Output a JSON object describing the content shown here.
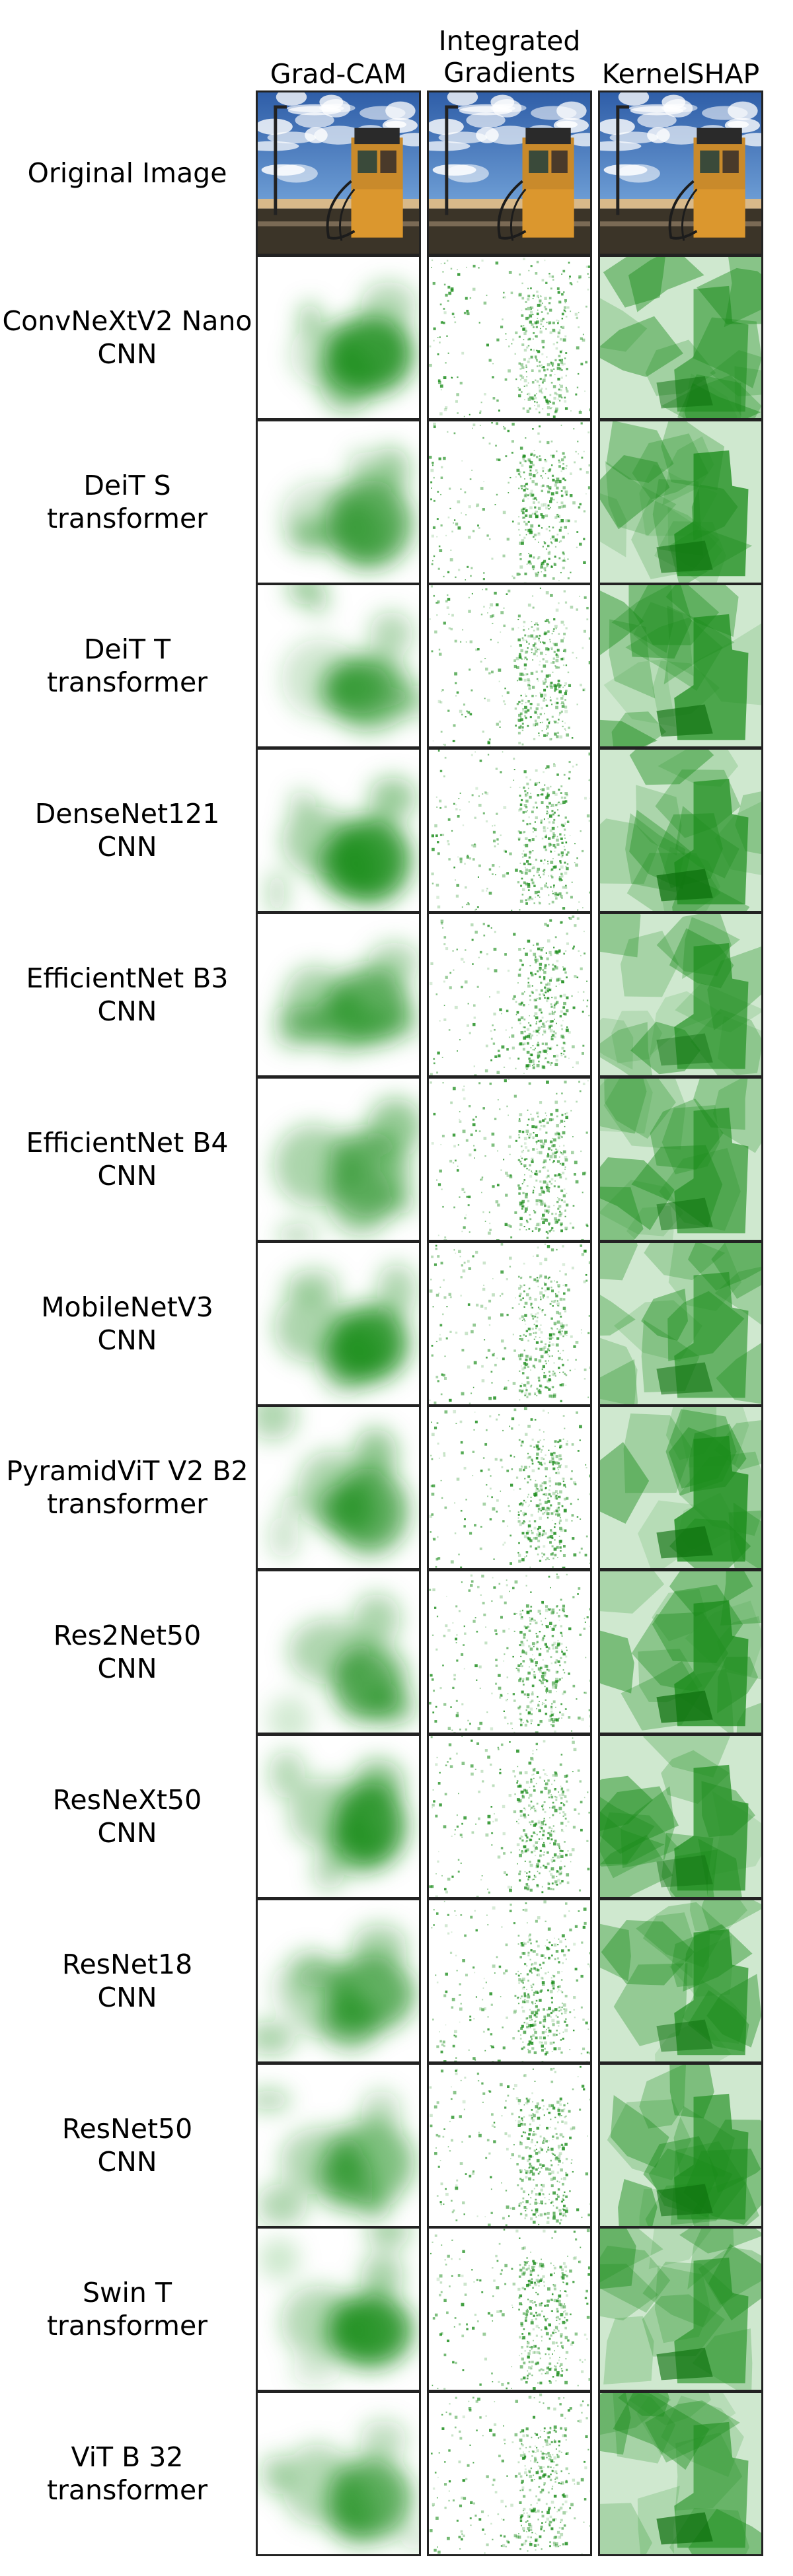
{
  "columns": [
    "Grad-CAM",
    "Integrated\nGradients",
    "KernelSHAP"
  ],
  "original_label": "Original Image",
  "rows": [
    {
      "model": "ConvNeXtV2 Nano",
      "family": "CNN"
    },
    {
      "model": "DeiT S",
      "family": "transformer"
    },
    {
      "model": "DeiT T",
      "family": "transformer"
    },
    {
      "model": "DenseNet121",
      "family": "CNN"
    },
    {
      "model": "EfficientNet B3",
      "family": "CNN"
    },
    {
      "model": "EfficientNet B4",
      "family": "CNN"
    },
    {
      "model": "MobileNetV3",
      "family": "CNN"
    },
    {
      "model": "PyramidViT V2 B2",
      "family": "transformer"
    },
    {
      "model": "Res2Net50",
      "family": "CNN"
    },
    {
      "model": "ResNeXt50",
      "family": "CNN"
    },
    {
      "model": "ResNet18",
      "family": "CNN"
    },
    {
      "model": "ResNet50",
      "family": "CNN"
    },
    {
      "model": "Swin T",
      "family": "transformer"
    },
    {
      "model": "ViT B 32",
      "family": "transformer"
    }
  ],
  "colors": {
    "heat": "#1a8c1a",
    "heat_dark": "#0b6e0b",
    "sky": "#6f9fd6",
    "pump": "#c98a2b",
    "ground": "#3b3428"
  }
}
